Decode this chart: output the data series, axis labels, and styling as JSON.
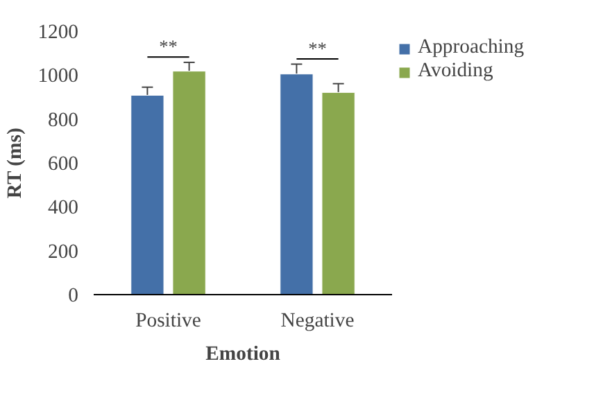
{
  "chart_data": {
    "type": "bar",
    "xlabel": "Emotion",
    "ylabel": "RT (ms)",
    "categories": [
      "Positive",
      "Negative"
    ],
    "series": [
      {
        "name": "Approaching",
        "color": "#4470a8",
        "values": [
          908,
          1005
        ],
        "errors": [
          37,
          45
        ]
      },
      {
        "name": "Avoiding",
        "color": "#8aa84e",
        "values": [
          1018,
          921
        ],
        "errors": [
          40,
          40
        ]
      }
    ],
    "ylim": [
      0,
      1200
    ],
    "yticks": [
      0,
      200,
      400,
      600,
      800,
      1000,
      1200
    ],
    "grid": false,
    "legend": "top right",
    "annotations": [
      "**",
      "**"
    ]
  }
}
